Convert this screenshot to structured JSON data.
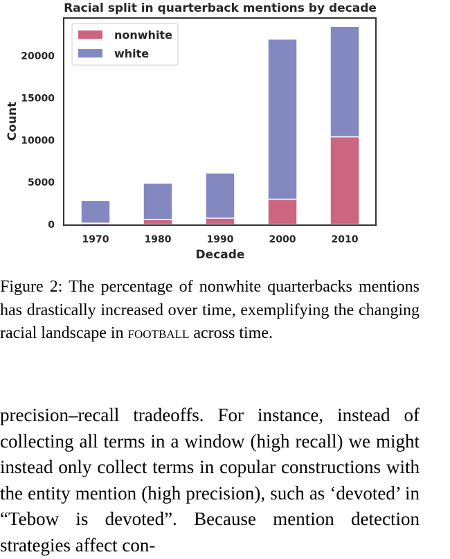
{
  "chart_data": {
    "type": "bar",
    "stacked": true,
    "title": "Racial split in quarterback mentions by decade",
    "xlabel": "Decade",
    "ylabel": "Count",
    "categories": [
      "1970",
      "1980",
      "1990",
      "2000",
      "2010"
    ],
    "series": [
      {
        "name": "nonwhite",
        "color": "#cc6680",
        "values": [
          150,
          600,
          750,
          3000,
          10400
        ]
      },
      {
        "name": "white",
        "color": "#8488c1",
        "values": [
          2700,
          4300,
          5350,
          19000,
          13100
        ]
      }
    ],
    "ylim": [
      0,
      24500
    ],
    "yticks": [
      0,
      5000,
      10000,
      15000,
      20000
    ],
    "legend": "top-left",
    "grid": false
  },
  "caption": {
    "prefix": "Figure 2:  The percentage of nonwhite quarterbacks mentions has drastically increased over time, exemplifying the changing racial landscape in",
    "small_caps": "football",
    "suffix": "across time."
  },
  "body_text": "precision–recall tradeoffs.  For instance, instead of collecting all terms in a window (high recall) we might instead only collect terms in copular constructions with the entity mention (high precision), such as ‘devoted’ in “Tebow is devoted”. Because mention detection strategies affect con-"
}
